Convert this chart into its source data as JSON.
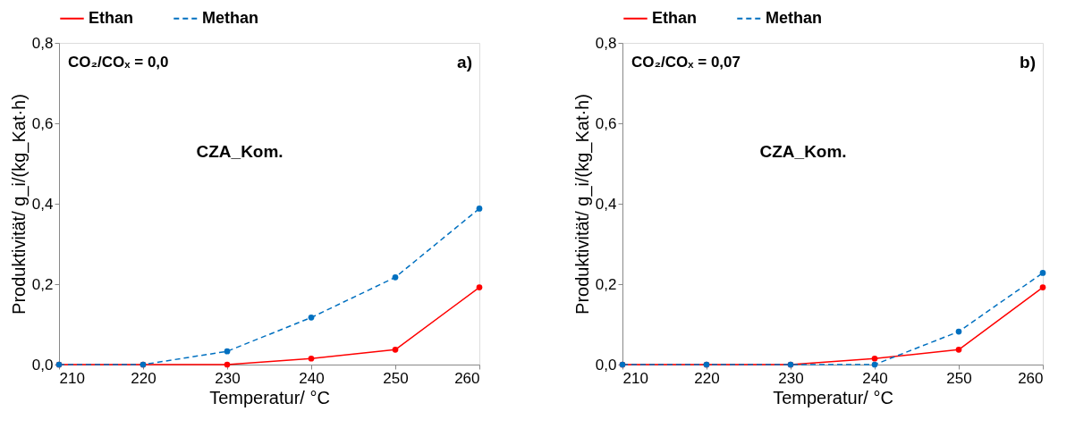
{
  "chart_data": [
    {
      "type": "line",
      "x": [
        210,
        220,
        230,
        240,
        250,
        260
      ],
      "xlabel": "Temperatur/ °C",
      "ylabel": "Produktivität/ g_i/(kg_Kat·h)",
      "series": [
        {
          "name": "Ethan",
          "color": "#ff0000",
          "line_style": "solid",
          "values": [
            0,
            0,
            0,
            0.015,
            0.037,
            0.192
          ]
        },
        {
          "name": "Methan",
          "color": "#0070c0",
          "line_style": "dashed",
          "values": [
            0,
            0,
            0.033,
            0.117,
            0.217,
            0.388
          ]
        }
      ],
      "annotations": [
        "CO₂/COₓ = 0,0",
        "a)",
        "CZA_Kom."
      ],
      "xlim": [
        210,
        260
      ],
      "xticks": [
        210,
        220,
        230,
        240,
        250,
        260
      ],
      "ylim": [
        0,
        0.8
      ],
      "yticks": [
        {
          "value": 0,
          "label": "0,0"
        },
        {
          "value": 0.2,
          "label": "0,2"
        },
        {
          "value": 0.4,
          "label": "0,4"
        },
        {
          "value": 0.6,
          "label": "0,6"
        },
        {
          "value": 0.8,
          "label": "0,8"
        }
      ],
      "grid": false,
      "legend": "top",
      "marker": "circle"
    },
    {
      "type": "line",
      "x": [
        210,
        220,
        230,
        240,
        250,
        260
      ],
      "xlabel": "Temperatur/ °C",
      "ylabel": "Produktivität/ g_i/(kg_Kat·h)",
      "series": [
        {
          "name": "Ethan",
          "color": "#ff0000",
          "line_style": "solid",
          "values": [
            0,
            0,
            0,
            0.015,
            0.037,
            0.192
          ]
        },
        {
          "name": "Methan",
          "color": "#0070c0",
          "line_style": "dashed",
          "values": [
            0,
            0,
            0,
            0,
            0.082,
            0.228
          ]
        }
      ],
      "annotations": [
        "CO₂/COₓ = 0,07",
        "b)",
        "CZA_Kom."
      ],
      "xlim": [
        210,
        260
      ],
      "xticks": [
        210,
        220,
        230,
        240,
        250,
        260
      ],
      "ylim": [
        0,
        0.8
      ],
      "yticks": [
        {
          "value": 0,
          "label": "0,0"
        },
        {
          "value": 0.2,
          "label": "0,2"
        },
        {
          "value": 0.4,
          "label": "0,4"
        },
        {
          "value": 0.6,
          "label": "0,6"
        },
        {
          "value": 0.8,
          "label": "0,8"
        }
      ],
      "grid": false,
      "legend": "top",
      "marker": "circle"
    }
  ]
}
